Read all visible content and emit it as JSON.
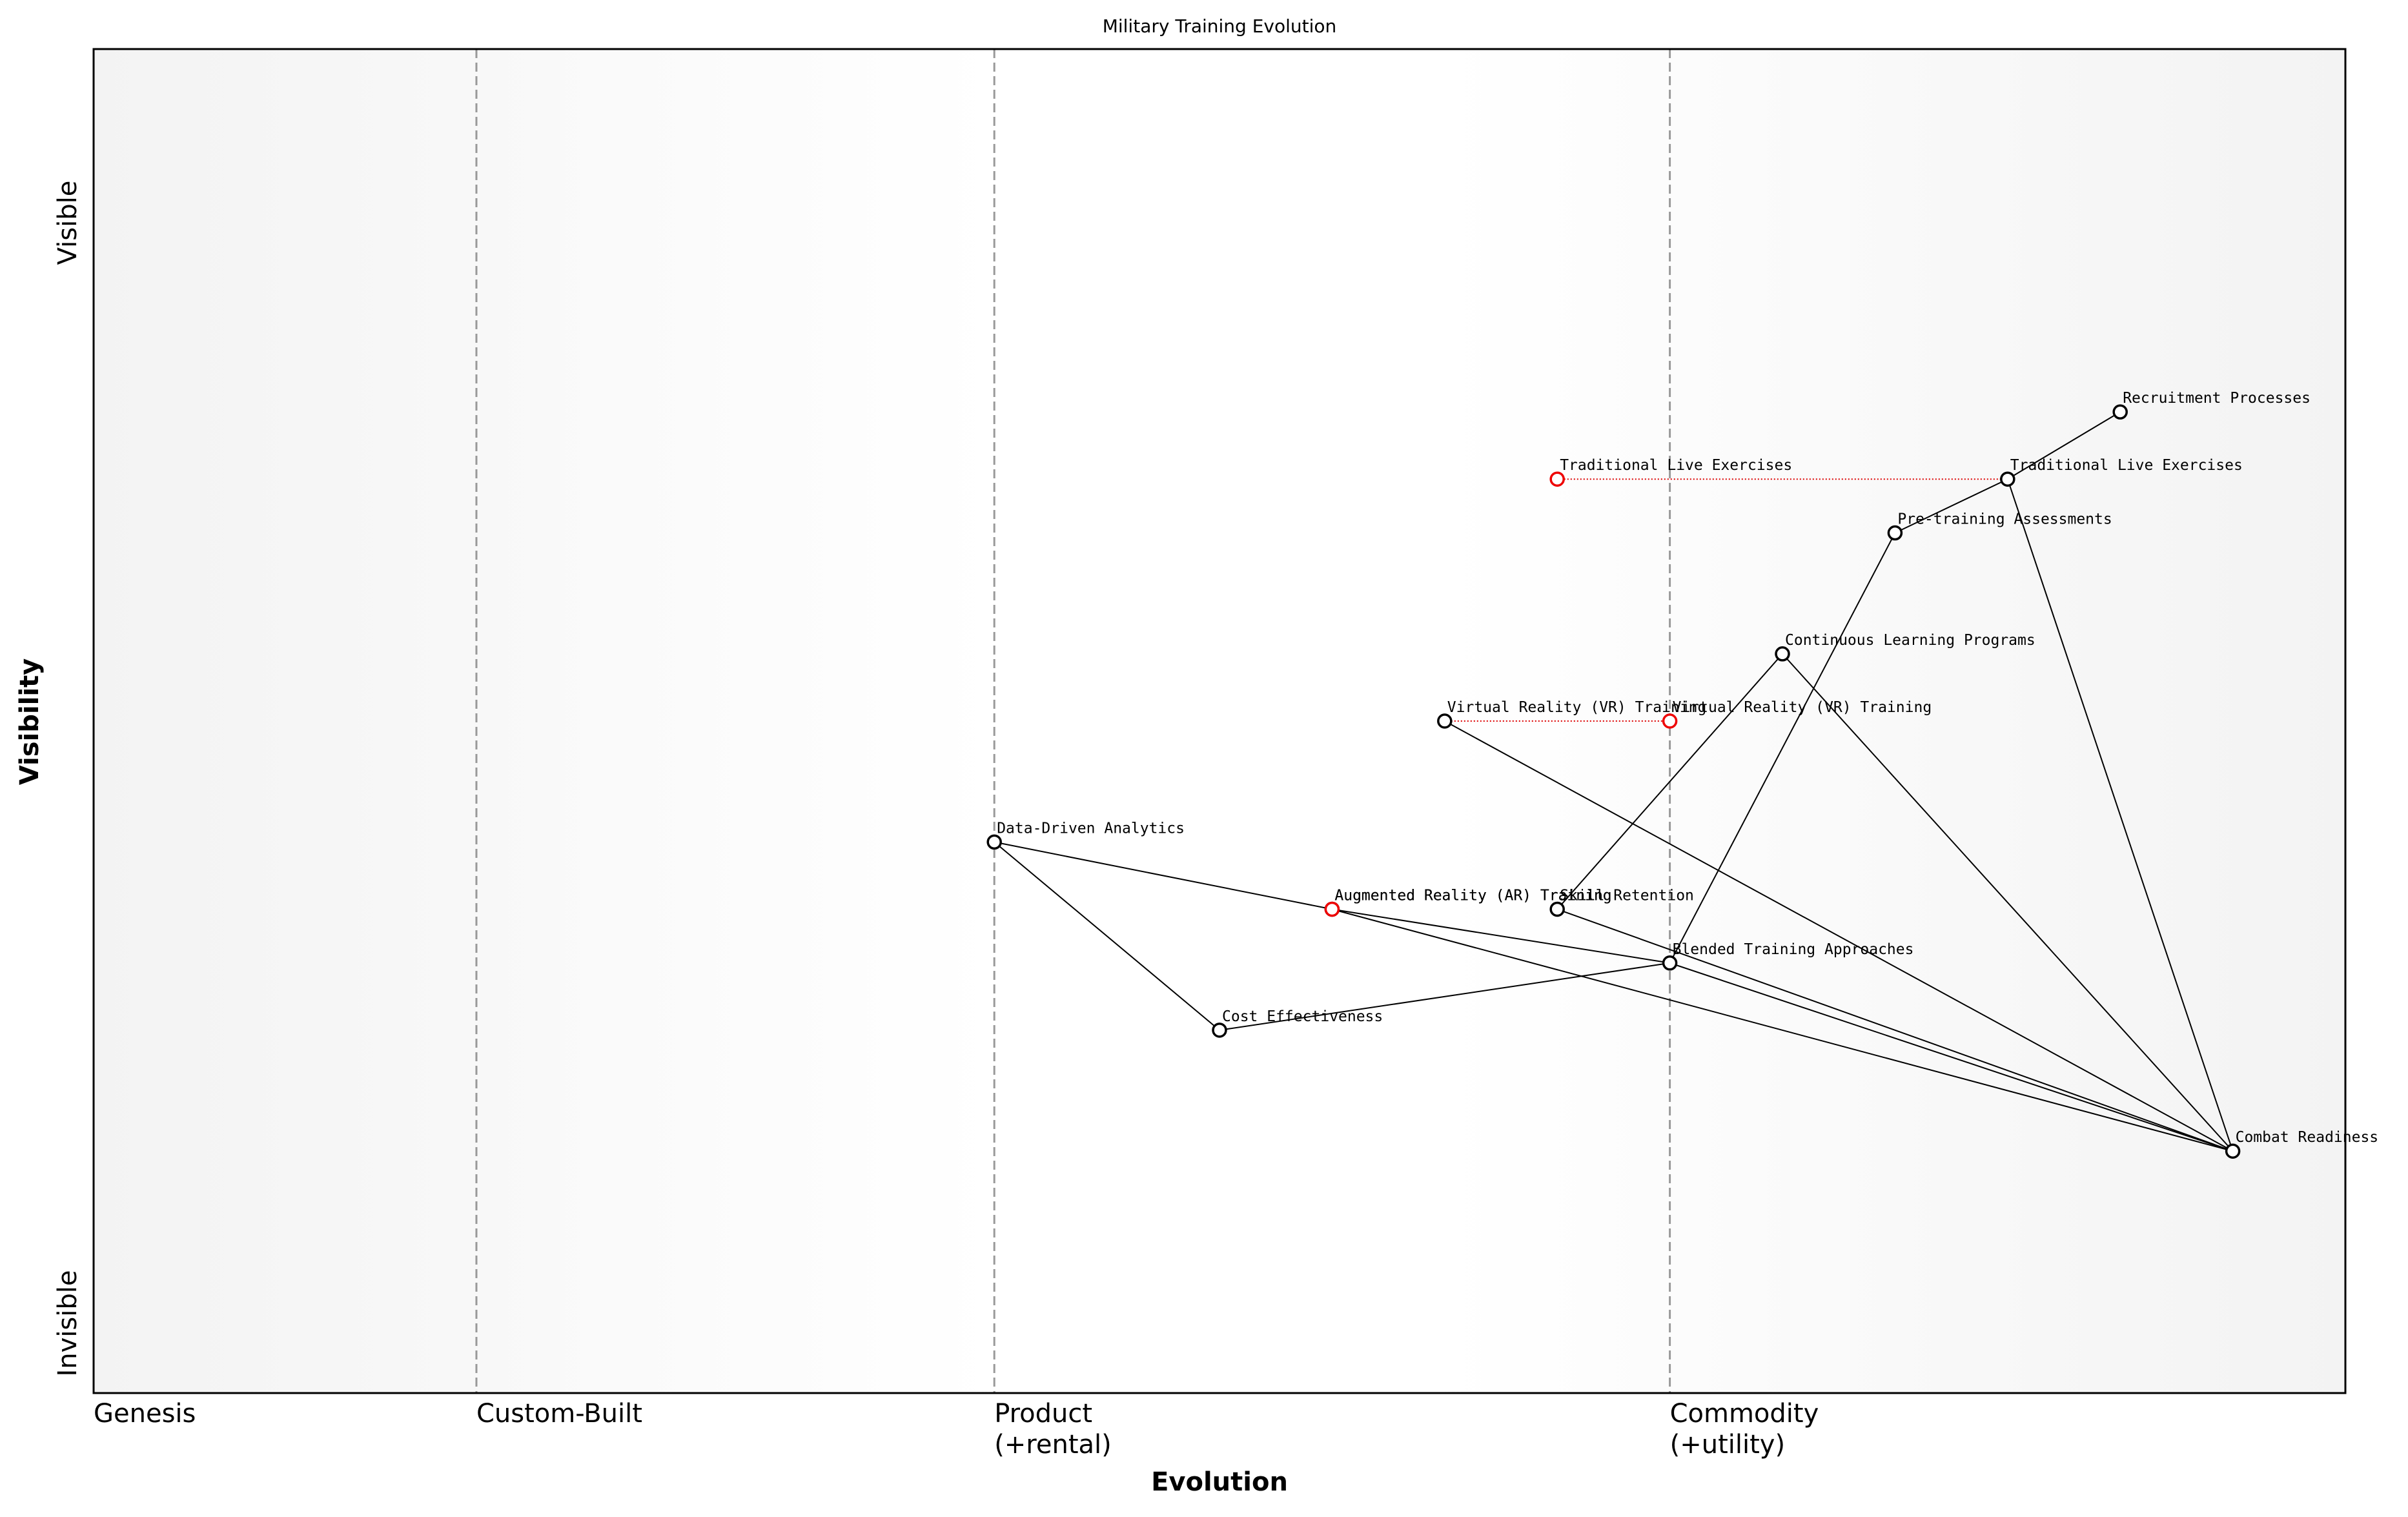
{
  "chart_data": {
    "type": "wardley",
    "title": "Military Training Evolution",
    "x_label": "Evolution",
    "y_label": "Visibility",
    "y_ends": [
      "Visible",
      "Invisible"
    ],
    "xlim": [
      0,
      1
    ],
    "ylim": [
      0,
      1
    ],
    "stages": [
      {
        "label": [
          "Genesis"
        ],
        "x": 0
      },
      {
        "label": [
          "Custom-Built"
        ],
        "x": 0.17
      },
      {
        "label": [
          "Product",
          "(+rental)"
        ],
        "x": 0.4
      },
      {
        "label": [
          "Commodity",
          "(+utility)"
        ],
        "x": 0.7
      }
    ],
    "components": [
      {
        "name": "Recruitment Processes",
        "evolution": 0.9,
        "visibility": 0.73
      },
      {
        "name": "Traditional Live Exercises",
        "evolution": 0.85,
        "visibility": 0.68
      },
      {
        "name": "Pre-training Assessments",
        "evolution": 0.8,
        "visibility": 0.64
      },
      {
        "name": "Continuous Learning Programs",
        "evolution": 0.75,
        "visibility": 0.55
      },
      {
        "name": "Virtual Reality (VR) Training",
        "evolution": 0.6,
        "visibility": 0.5
      },
      {
        "name": "Data-Driven Analytics",
        "evolution": 0.4,
        "visibility": 0.41
      },
      {
        "name": "Augmented Reality (AR) Training",
        "evolution": 0.55,
        "visibility": 0.36
      },
      {
        "name": "Skill Retention",
        "evolution": 0.65,
        "visibility": 0.36
      },
      {
        "name": "Blended Training Approaches",
        "evolution": 0.7,
        "visibility": 0.32
      },
      {
        "name": "Cost Effectiveness",
        "evolution": 0.5,
        "visibility": 0.27
      },
      {
        "name": "Combat Readiness",
        "evolution": 0.95,
        "visibility": 0.18
      }
    ],
    "evolved": [
      {
        "name": "Traditional Live Exercises",
        "evolution": 0.65,
        "visibility": 0.68
      },
      {
        "name": "Virtual Reality (VR) Training",
        "evolution": 0.7,
        "visibility": 0.5
      },
      {
        "name": "Augmented Reality (AR) Training",
        "evolution": 0.55,
        "visibility": 0.36
      }
    ],
    "links": [
      [
        "Recruitment Processes",
        "Traditional Live Exercises"
      ],
      [
        "Traditional Live Exercises",
        "Pre-training Assessments"
      ],
      [
        "Traditional Live Exercises",
        "Combat Readiness"
      ],
      [
        "Pre-training Assessments",
        "Blended Training Approaches"
      ],
      [
        "Continuous Learning Programs",
        "Skill Retention"
      ],
      [
        "Continuous Learning Programs",
        "Combat Readiness"
      ],
      [
        "Virtual Reality (VR) Training",
        "Combat Readiness"
      ],
      [
        "Data-Driven Analytics",
        "Augmented Reality (AR) Training"
      ],
      [
        "Data-Driven Analytics",
        "Cost Effectiveness"
      ],
      [
        "Cost Effectiveness",
        "Blended Training Approaches"
      ],
      [
        "Augmented Reality (AR) Training",
        "Blended Training Approaches"
      ],
      [
        "Augmented Reality (AR) Training",
        "Combat Readiness"
      ],
      [
        "Skill Retention",
        "Combat Readiness"
      ],
      [
        "Blended Training Approaches",
        "Combat Readiness"
      ]
    ]
  }
}
